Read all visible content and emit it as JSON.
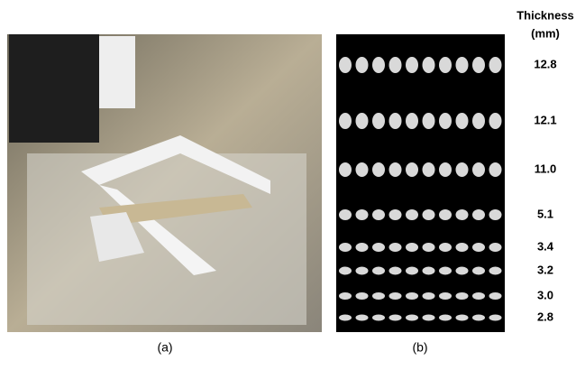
{
  "header": {
    "title_line1": "Thickness",
    "title_line2": "(mm)"
  },
  "thickness_labels": [
    "12.8",
    "12.1",
    "11.0",
    "5.1",
    "3.4",
    "3.2",
    "3.0",
    "2.8"
  ],
  "captions": [
    "(a)",
    "(b)"
  ]
}
